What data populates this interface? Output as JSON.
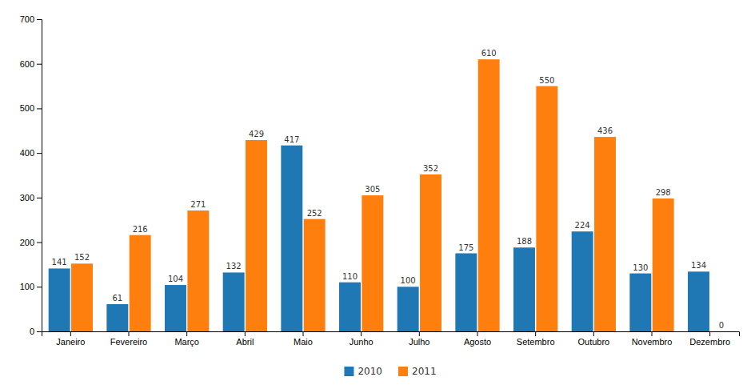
{
  "chart_data": {
    "type": "bar",
    "categories": [
      "Janeiro",
      "Fevereiro",
      "Março",
      "Abril",
      "Maio",
      "Junho",
      "Julho",
      "Agosto",
      "Setembro",
      "Outubro",
      "Novembro",
      "Dezembro"
    ],
    "series": [
      {
        "name": "2010",
        "values": [
          141,
          61,
          104,
          132,
          417,
          110,
          100,
          175,
          188,
          224,
          130,
          134
        ]
      },
      {
        "name": "2011",
        "values": [
          152,
          216,
          271,
          429,
          252,
          305,
          352,
          610,
          550,
          436,
          298,
          0
        ]
      }
    ],
    "ylim": [
      0,
      700
    ],
    "yticks": [
      0,
      100,
      200,
      300,
      400,
      500,
      600,
      700
    ],
    "grid": false,
    "data_labels": true,
    "legend": "bottom"
  }
}
